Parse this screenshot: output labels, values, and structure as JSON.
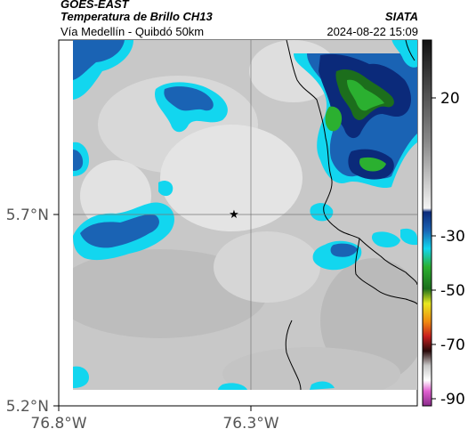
{
  "header": {
    "satellite": "GOES-EAST",
    "product": "Temperatura de Brillo CH13",
    "organization": "SIATA",
    "route": "Vía Medellín - Quibdó 50km",
    "datetime": "2024-08-22 15:09"
  },
  "map": {
    "x_ticks": [
      "76.8°W",
      "76.3°W"
    ],
    "y_ticks": [
      "5.7°N",
      "5.2°N"
    ],
    "center_marker": "star-icon"
  },
  "colorbar": {
    "ticks": [
      "20",
      "-30",
      "-50",
      "-70",
      "-90"
    ]
  },
  "colors": {
    "cloud_blue": "#1a63b4",
    "cloud_cyan": "#12d6ef",
    "cloud_green": "#2bb030",
    "background_gray": "#c8c8c8"
  }
}
